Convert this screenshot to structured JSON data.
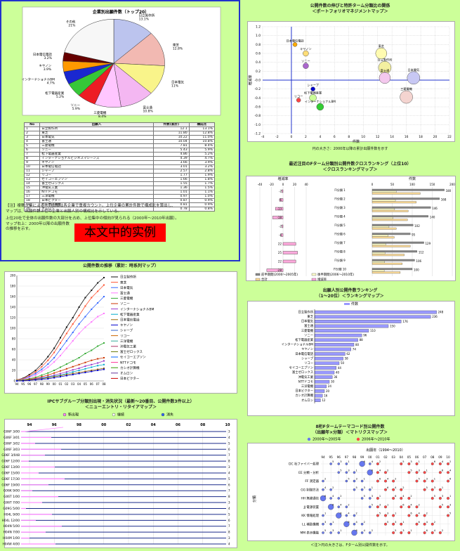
{
  "main": {
    "pie_title": "企業別出願件数（トップ20）",
    "table_headers": [
      "No",
      "出願人",
      "件数(累計)",
      "構成比"
    ],
    "rows": [
      [
        "1",
        "日立製作所",
        "12.1",
        "13.1%"
      ],
      [
        "2",
        "東芝",
        "11.80",
        "12.8%"
      ],
      [
        "3",
        "日本電気",
        "10.22",
        "11.0%"
      ],
      [
        "4",
        "富士通",
        "10.04",
        "10.8%"
      ],
      [
        "5",
        "三菱電機",
        "7.81",
        "8.4%"
      ],
      [
        "6",
        "ソニー",
        "5.43",
        "5.9%"
      ],
      [
        "7",
        "松下電器産業",
        "4.86",
        "5.2%"
      ],
      [
        "8",
        "インターナショナルビジネスマシーンズ",
        "4.39",
        "4.7%"
      ],
      [
        "9",
        "キヤノン",
        "3.66",
        "3.9%"
      ],
      [
        "10",
        "日本電信電話",
        "3.01",
        "3.2%"
      ],
      [
        "11",
        "シャープ",
        "2.57",
        "2.8%"
      ],
      [
        "12",
        "リコー",
        "1.77",
        "1.9%"
      ],
      [
        "13",
        "セイコーエプソン",
        "1.66",
        "1.8%"
      ],
      [
        "14",
        "富士ゼロックス",
        "1.55",
        "1.7%"
      ],
      [
        "15",
        "沖電気工業",
        "1.36",
        "1.5%"
      ],
      [
        "16",
        "NTTドコモ",
        "1.01",
        "1.1%"
      ],
      [
        "17",
        "三洋電機",
        "0.97",
        "1.0%"
      ],
      [
        "18",
        "日本ビクター",
        "0.87",
        "0.9%"
      ],
      [
        "19",
        "カシオ計算機",
        "0.81",
        "0.9%"
      ],
      [
        "20",
        "オムロン",
        "0.78",
        "0.8%"
      ]
    ],
    "note1": "【注】複数企業による共同出願は各企業で重複カウント。上位企業の累計件数で構成比を算出し、",
    "note2": "マップは、出願件数上位の企業と出願人別の構成比を示している。",
    "note3": "上位20社で全体の出願件数の大部分を占め、上位集中の傾向が見られる（2000年〜2010年出願）。",
    "note4": "マップ右上：2000年以降の出願件数の推移を示す。",
    "red_label": "本文中的实例"
  },
  "line_panel": {
    "title": "公開件数の推移（累計：時系列マップ）",
    "legend": [
      "日立製作所",
      "東芝",
      "日本電気",
      "富士通",
      "三菱電機",
      "ソニー",
      "インターナショナルBM",
      "松下電器産業",
      "日本電信電話",
      "キヤノン",
      "シャープ",
      "リコー",
      "三洋電機",
      "沖電気工業",
      "富士ゼロックス",
      "セイコーエプソン",
      "NTTドコモ",
      "カシオ計算機",
      "オムロン",
      "日本ビクター"
    ]
  },
  "bubble_panel": {
    "title": "公開件数の伸びと特許ターム分類比の関係",
    "subtitle": "＜ポートフォリオマネジメントマップ＞",
    "caption": "円の大きさ：2000年以降の累計出願件数を示す"
  },
  "hbar_panel": {
    "title": "最近注目のFターム分類別公開件数クロスランキング（上位10）",
    "subtitle": "＜クロスランキングマップ＞",
    "left_header": "増減率",
    "right_header": "件数",
    "legend": [
      "前半期間(2000〜2005年)",
      "後半期間(2006〜2010年)",
      "合計",
      "増減率"
    ]
  },
  "rank_panel": {
    "title": "出願人別公開件数ランキング",
    "subtitle": "（1〜20位）＜ランキングマップ＞",
    "legend": "件数"
  },
  "cat_panel": {
    "title": "IPCサブグループ分類別出現・消失状況（最新〜20番目、公開件数3件以上）",
    "subtitle": "＜ニューエントリ・リタイアマップ＞",
    "legend": [
      "新出現",
      "継続",
      "消失"
    ]
  },
  "matrix_panel": {
    "title": "8桁Fタームテーマコード別公開件数",
    "subtitle": "（出願年×分類）＜マトリクスマップ＞",
    "legend": [
      "2000年〜2005年",
      "2006年〜2010年"
    ],
    "caption": "＜注＞円の大きさは、Fターム別公開件数を示す。",
    "yaxis": "分類",
    "top_label": "出願年（1994〜2010）"
  },
  "chart_data": [
    {
      "type": "pie",
      "title": "企業別出願件数（トップ20）",
      "labels": [
        "日立製作所",
        "東芝",
        "日本電気",
        "富士通",
        "三菱電機",
        "ソニー",
        "松下電器産業",
        "インターナショナルBM",
        "キヤノン",
        "日本電信電話",
        "その他"
      ],
      "values": [
        13.1,
        12.8,
        11.0,
        10.8,
        8.4,
        5.9,
        5.2,
        4.7,
        3.9,
        3.2,
        21.0
      ],
      "colors": [
        "#bcc4ee",
        "#f2b9b2",
        "#f9f48a",
        "#f4b7f2",
        "#ffc6ff",
        "#ed1c24",
        "#36c738",
        "#1a28d0",
        "#ff9900",
        "#660000",
        "#f7f7f7"
      ]
    },
    {
      "type": "line",
      "title": "公開件数の推移（累計）",
      "x": [
        "94",
        "95",
        "96",
        "97",
        "98",
        "99",
        "00",
        "01",
        "02",
        "03",
        "04",
        "05",
        "06",
        "07",
        "08"
      ],
      "ylim": [
        0,
        200
      ],
      "series": [
        {
          "name": "日立製作所",
          "color": "#111111",
          "values": [
            2,
            5,
            12,
            20,
            32,
            46,
            62,
            82,
            102,
            120,
            140,
            158,
            172,
            186,
            196
          ]
        },
        {
          "name": "東芝",
          "color": "#ff5533",
          "values": [
            2,
            4,
            10,
            17,
            27,
            39,
            54,
            72,
            90,
            108,
            124,
            142,
            158,
            170,
            182
          ]
        },
        {
          "name": "日本電気",
          "color": "#3366ff",
          "values": [
            1,
            3,
            8,
            14,
            22,
            32,
            44,
            60,
            76,
            92,
            108,
            122,
            136,
            148,
            160
          ]
        },
        {
          "name": "富士通",
          "color": "#ff77ff",
          "values": [
            1,
            3,
            6,
            11,
            18,
            26,
            36,
            48,
            62,
            76,
            90,
            102,
            112,
            122,
            128
          ]
        },
        {
          "name": "三菱電機",
          "color": "#33aa33",
          "values": [
            1,
            2,
            4,
            7,
            11,
            15,
            20,
            26,
            32,
            38,
            44,
            52,
            58,
            66,
            72
          ]
        },
        {
          "name": "ソニー",
          "color": "#cc3300",
          "values": [
            0,
            1,
            3,
            5,
            8,
            11,
            15,
            19,
            23,
            27,
            31,
            35,
            39,
            42,
            44
          ]
        },
        {
          "name": "松下電器産業",
          "color": "#9933cc",
          "values": [
            0,
            1,
            2,
            4,
            6,
            8,
            11,
            14,
            17,
            21,
            24,
            28,
            31,
            34,
            38
          ]
        },
        {
          "name": "キヤノン",
          "color": "#00aacc",
          "values": [
            0,
            1,
            2,
            3,
            5,
            7,
            9,
            11,
            14,
            17,
            20,
            23,
            26,
            29,
            31
          ]
        },
        {
          "name": "日本電信電話",
          "color": "#996600",
          "values": [
            0,
            1,
            2,
            3,
            4,
            6,
            8,
            10,
            12,
            14,
            16,
            18,
            20,
            22,
            24
          ]
        },
        {
          "name": "シャープ",
          "color": "#0000cc",
          "values": [
            0,
            0,
            1,
            2,
            3,
            4,
            6,
            8,
            10,
            12,
            14,
            16,
            18,
            20,
            22
          ]
        }
      ]
    },
    {
      "type": "scatter",
      "title": "ポートフォリオマネジメントマップ",
      "xlabel": "件数",
      "ylabel": "増減率",
      "xlim": [
        -4,
        22
      ],
      "ylim": [
        -1.2,
        1.2
      ],
      "points": [
        {
          "label": "日立製作所",
          "x": 13,
          "y": 0.28,
          "r": 9,
          "color": "#f4f0a0"
        },
        {
          "label": "東芝",
          "x": 12.5,
          "y": 0.6,
          "r": 8,
          "color": "#fffbb0"
        },
        {
          "label": "日本電気",
          "x": 17,
          "y": 0.05,
          "r": 9,
          "color": "#c8c8f4"
        },
        {
          "label": "富士通",
          "x": 13,
          "y": 0.05,
          "r": 8,
          "color": "#f4c8ee"
        },
        {
          "label": "三菱電機",
          "x": 16,
          "y": -0.38,
          "r": 9,
          "color": "#f4d4d0"
        },
        {
          "label": "ソニー",
          "x": 2,
          "y": 0.32,
          "r": 4,
          "color": "#aa66cc"
        },
        {
          "label": "松下電器産業",
          "x": 3,
          "y": -0.4,
          "r": 5,
          "color": "#ccff99"
        },
        {
          "label": "インターナショナルBM",
          "x": 4,
          "y": -0.6,
          "r": 5,
          "color": "#33cc33"
        },
        {
          "label": "キヤノン",
          "x": 2,
          "y": 0.6,
          "r": 4,
          "color": "#ffdd77"
        },
        {
          "label": "日本電信電話",
          "x": 0.5,
          "y": 0.8,
          "r": 3,
          "color": "#ffaa00"
        },
        {
          "label": "シャープ",
          "x": 3,
          "y": -0.2,
          "r": 3,
          "color": "#0000cc"
        },
        {
          "label": "リコー",
          "x": 1,
          "y": -0.45,
          "r": 3,
          "color": "#ff4444"
        }
      ]
    },
    {
      "type": "bar",
      "title": "クロスランキング（上位10）",
      "categories": [
        "1",
        "2",
        "3",
        "4",
        "5",
        "6",
        "7",
        "8",
        "9",
        "10"
      ],
      "series": [
        {
          "name": "増減率",
          "values": [
            -2,
            -6,
            -13,
            -18,
            -2,
            -4,
            22,
            25,
            22,
            -28
          ]
        },
        {
          "name": "前半期間",
          "values": [
            60,
            58,
            56,
            52,
            42,
            40,
            34,
            32,
            31,
            30
          ]
        },
        {
          "name": "後半期間",
          "values": [
            120,
            110,
            90,
            88,
            60,
            55,
            95,
            80,
            75,
            70
          ]
        },
        {
          "name": "合計",
          "values": [
            180,
            168,
            146,
            140,
            102,
            95,
            129,
            112,
            106,
            100
          ]
        }
      ]
    },
    {
      "type": "bar",
      "title": "出願人別公開件数ランキング",
      "categories": [
        "日立製作所",
        "東芝",
        "日本電気",
        "富士通",
        "三菱電機",
        "ソニー",
        "松下電器産業",
        "インターナショナルBM",
        "キヤノン",
        "日本電信電話",
        "シャープ",
        "リコー",
        "セイコーエプソン",
        "富士ゼロックス",
        "沖電気工業",
        "NTTドコモ",
        "三洋電機",
        "日本ビクター",
        "カシオ計算機",
        "オムロン"
      ],
      "values": [
        248,
        236,
        176,
        150,
        110,
        96,
        88,
        80,
        74,
        62,
        58,
        50,
        44,
        40,
        36,
        30,
        24,
        20,
        16,
        12
      ]
    },
    {
      "type": "table",
      "title": "ニューエントリ・リタイアマップ",
      "rows": [
        "G06F 3/00",
        "G06F 3/01",
        "G06F 3/02",
        "G06F 3/03",
        "G06F 3/048",
        "G06F 12/00",
        "G06F 13/00",
        "G06F 15/00",
        "G06F 17/30",
        "G06F 19/00",
        "G06K 9/00",
        "G06T 1/00",
        "G06T 7/00",
        "G09G 5/00",
        "H04L 9/00",
        "H04L 12/00",
        "H04N 5/00",
        "H04N 7/00",
        "H04M 1/00",
        "H04W 4/00"
      ],
      "x": [
        "94",
        "96",
        "98",
        "00",
        "02",
        "04",
        "06",
        "08",
        "10"
      ]
    },
    {
      "type": "table",
      "title": "マトリクスマップ",
      "rows": [
        "DC 社ファイバー処理",
        "EE 分類・分析",
        "FF 測定器",
        "GG 制御方法",
        "HH 無線通信",
        "JJ 電源装置",
        "KK 情報処理",
        "LL 補助機構",
        "MM 表示機能"
      ],
      "x": [
        "94",
        "95",
        "96",
        "97",
        "98",
        "99",
        "00",
        "01",
        "02",
        "03",
        "04",
        "05",
        "06",
        "07",
        "08",
        "09",
        "10"
      ]
    }
  ]
}
